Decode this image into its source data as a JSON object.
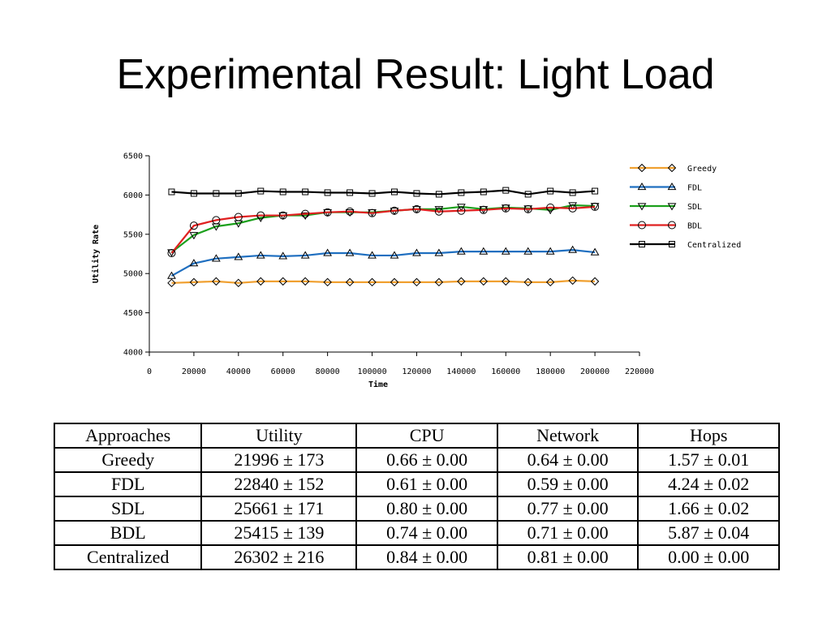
{
  "slide": {
    "title": "Experimental Result: Light Load"
  },
  "chart_data": {
    "type": "line",
    "title": "",
    "xlabel": "Time",
    "ylabel": "Utility Rate",
    "xlim": [
      0,
      220000
    ],
    "ylim": [
      4000,
      6500
    ],
    "xticks": [
      0,
      20000,
      40000,
      60000,
      80000,
      100000,
      120000,
      140000,
      160000,
      180000,
      200000,
      220000
    ],
    "yticks": [
      4000,
      4500,
      5000,
      5500,
      6000,
      6500
    ],
    "grid": false,
    "legend_position": "right",
    "x": [
      10000,
      20000,
      30000,
      40000,
      50000,
      60000,
      70000,
      80000,
      90000,
      100000,
      110000,
      120000,
      130000,
      140000,
      150000,
      160000,
      170000,
      180000,
      190000,
      200000
    ],
    "series": [
      {
        "name": "Greedy",
        "color": "#f0a030",
        "marker": "diamond",
        "values": [
          4880,
          4890,
          4900,
          4880,
          4900,
          4900,
          4900,
          4890,
          4890,
          4890,
          4890,
          4890,
          4890,
          4900,
          4900,
          4900,
          4890,
          4890,
          4910,
          4900
        ]
      },
      {
        "name": "FDL",
        "color": "#1f6fc0",
        "marker": "triangle-up",
        "values": [
          4970,
          5130,
          5190,
          5210,
          5230,
          5220,
          5230,
          5260,
          5260,
          5230,
          5230,
          5260,
          5260,
          5280,
          5280,
          5280,
          5280,
          5280,
          5300,
          5270
        ]
      },
      {
        "name": "SDL",
        "color": "#1ca01c",
        "marker": "triangle-down",
        "values": [
          5270,
          5490,
          5600,
          5640,
          5710,
          5740,
          5740,
          5780,
          5780,
          5780,
          5800,
          5820,
          5820,
          5850,
          5820,
          5840,
          5830,
          5810,
          5870,
          5860
        ]
      },
      {
        "name": "BDL",
        "color": "#e02020",
        "marker": "circle",
        "values": [
          5260,
          5610,
          5680,
          5720,
          5740,
          5740,
          5760,
          5780,
          5790,
          5770,
          5800,
          5820,
          5790,
          5800,
          5810,
          5830,
          5820,
          5840,
          5830,
          5850
        ]
      },
      {
        "name": "Centralized",
        "color": "#000000",
        "marker": "square",
        "values": [
          6040,
          6020,
          6020,
          6020,
          6050,
          6040,
          6040,
          6030,
          6030,
          6020,
          6040,
          6020,
          6010,
          6030,
          6040,
          6060,
          6010,
          6050,
          6030,
          6050
        ]
      }
    ]
  },
  "table": {
    "headers": [
      "Approaches",
      "Utility",
      "CPU",
      "Network",
      "Hops"
    ],
    "rows": [
      [
        "Greedy",
        "21996 ± 173",
        "0.66 ± 0.00",
        "0.64 ± 0.00",
        "1.57 ± 0.01"
      ],
      [
        "FDL",
        "22840 ± 152",
        "0.61 ± 0.00",
        "0.59 ± 0.00",
        "4.24 ± 0.02"
      ],
      [
        "SDL",
        "25661 ± 171",
        "0.80 ± 0.00",
        "0.77 ± 0.00",
        "1.66 ± 0.02"
      ],
      [
        "BDL",
        "25415 ± 139",
        "0.74 ± 0.00",
        "0.71 ± 0.00",
        "5.87 ± 0.04"
      ],
      [
        "Centralized",
        "26302 ± 216",
        "0.84 ± 0.00",
        "0.81 ± 0.00",
        "0.00 ± 0.00"
      ]
    ]
  }
}
